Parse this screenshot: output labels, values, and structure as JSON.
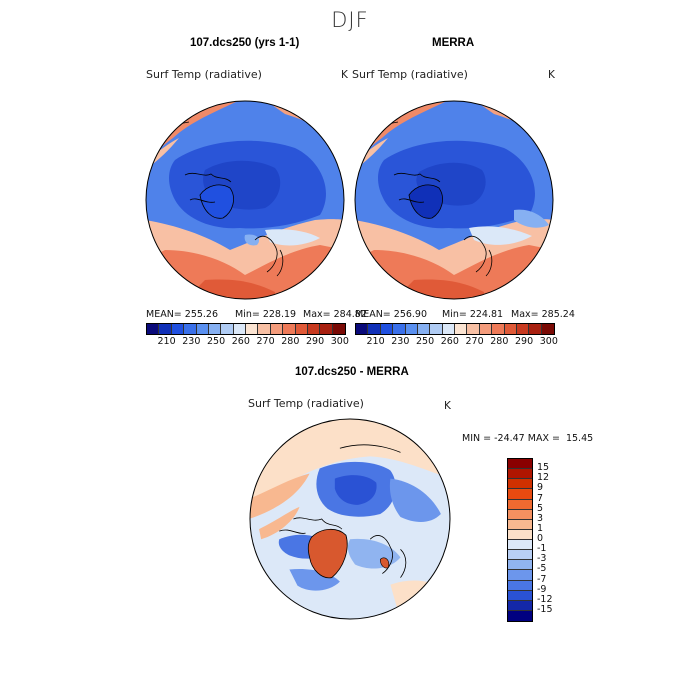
{
  "title": "DJF",
  "panels": [
    {
      "title": "107.dcs250 (yrs 1-1)",
      "variable": "Surf Temp (radiative)",
      "unit": "K",
      "mean": "MEAN= 255.26",
      "min": "Min= 228.19",
      "max": "Max= 284.82"
    },
    {
      "title": "MERRA",
      "variable": "Surf Temp (radiative)",
      "unit": "K",
      "mean": "MEAN= 256.90",
      "min": "Min= 224.81",
      "max": "Max= 285.24"
    },
    {
      "title": "107.dcs250 - MERRA",
      "variable": "Surf Temp (radiative)",
      "unit": "K",
      "minmax": "MIN = -24.47 MAX =  15.45"
    }
  ],
  "abs_colorbar": {
    "ticks": [
      "210",
      "230",
      "250",
      "260",
      "270",
      "280",
      "290",
      "300"
    ],
    "colors": [
      "#0a0a7a",
      "#1030b8",
      "#2050e0",
      "#3a70ea",
      "#5a90f0",
      "#86b0f2",
      "#b0ccf4",
      "#dbe8f8",
      "#fbe4d2",
      "#f8c0a4",
      "#f49c7c",
      "#ee7a58",
      "#e05a38",
      "#c83a20",
      "#a82010",
      "#7a0a05"
    ]
  },
  "diff_colorbar": {
    "ticks": [
      "15",
      "12",
      "9",
      "7",
      "5",
      "3",
      "1",
      "0",
      "-1",
      "-3",
      "-5",
      "-7",
      "-9",
      "-12",
      "-15"
    ],
    "colors": [
      "#8a0000",
      "#b01500",
      "#d03000",
      "#e84a10",
      "#f06a30",
      "#f49060",
      "#f8b890",
      "#fce0c8",
      "#dce8f8",
      "#b8cff4",
      "#90b4f0",
      "#6c96ec",
      "#4a76e4",
      "#2a52d4",
      "#1428a8",
      "#000080"
    ]
  },
  "colors": {
    "ocean_warm": "#f08a68",
    "deep_cold": "#2a55d8",
    "mid_cold": "#4f82ea",
    "pale": "#dbe8f8",
    "coast": "#000000"
  }
}
